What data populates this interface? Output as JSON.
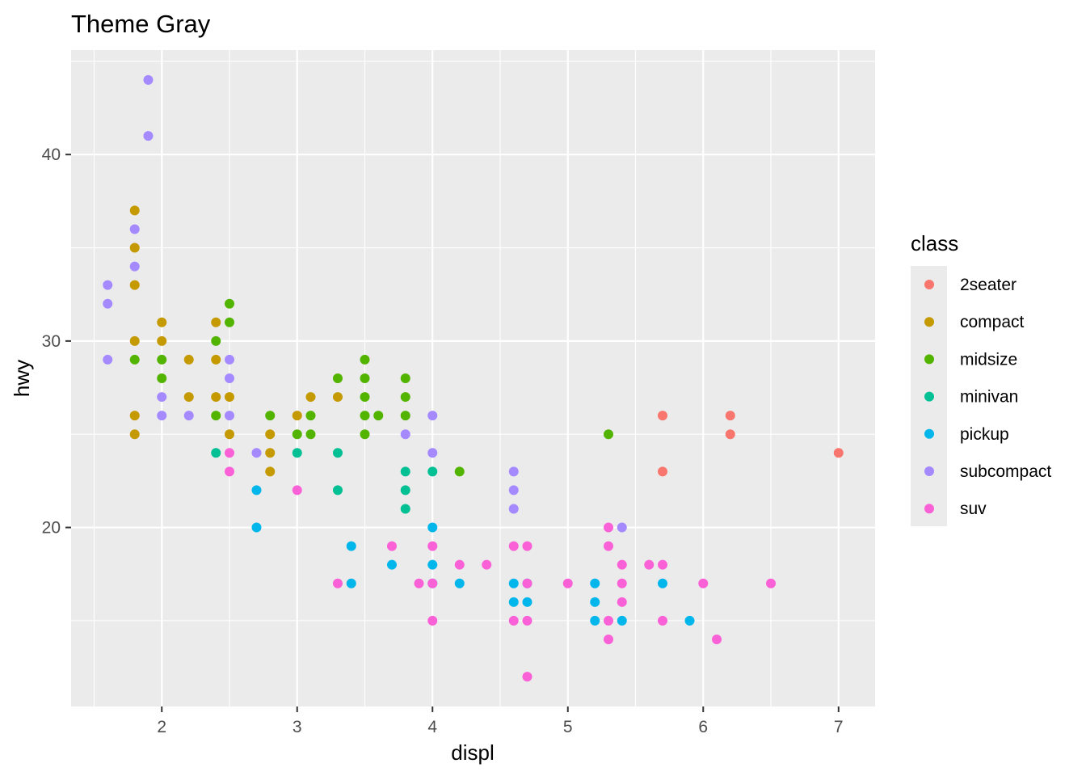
{
  "chart_data": {
    "type": "scatter",
    "title": "Theme Gray",
    "xlabel": "displ",
    "ylabel": "hwy",
    "xlim": [
      1.33,
      7.27
    ],
    "ylim": [
      10.4,
      45.6
    ],
    "x_ticks": [
      2,
      3,
      4,
      5,
      6,
      7
    ],
    "y_ticks": [
      20,
      30,
      40
    ],
    "grid": true,
    "legend": {
      "title": "class",
      "position": "right",
      "entries": [
        {
          "name": "2seater",
          "color": "#F8766D"
        },
        {
          "name": "compact",
          "color": "#C49A00"
        },
        {
          "name": "midsize",
          "color": "#53B400"
        },
        {
          "name": "minivan",
          "color": "#00C094"
        },
        {
          "name": "pickup",
          "color": "#00B6EB"
        },
        {
          "name": "subcompact",
          "color": "#A58AFF"
        },
        {
          "name": "suv",
          "color": "#FB61D7"
        }
      ]
    },
    "series": [
      {
        "name": "2seater",
        "points": [
          [
            5.7,
            26
          ],
          [
            5.7,
            23
          ],
          [
            6.2,
            26
          ],
          [
            6.2,
            25
          ],
          [
            7.0,
            24
          ]
        ]
      },
      {
        "name": "compact",
        "points": [
          [
            1.8,
            37
          ],
          [
            1.8,
            35
          ],
          [
            1.8,
            33
          ],
          [
            1.8,
            30
          ],
          [
            1.8,
            26
          ],
          [
            1.8,
            25
          ],
          [
            2.0,
            31
          ],
          [
            2.0,
            30
          ],
          [
            2.2,
            29
          ],
          [
            2.2,
            27
          ],
          [
            2.4,
            31
          ],
          [
            2.4,
            29
          ],
          [
            2.4,
            27
          ],
          [
            2.5,
            27
          ],
          [
            2.5,
            25
          ],
          [
            2.8,
            25
          ],
          [
            2.8,
            24
          ],
          [
            2.8,
            23
          ],
          [
            3.0,
            26
          ],
          [
            3.1,
            27
          ],
          [
            3.3,
            27
          ]
        ]
      },
      {
        "name": "midsize",
        "points": [
          [
            1.8,
            29
          ],
          [
            2.0,
            29
          ],
          [
            2.0,
            28
          ],
          [
            2.4,
            30
          ],
          [
            2.4,
            26
          ],
          [
            2.5,
            32
          ],
          [
            2.5,
            31
          ],
          [
            2.8,
            26
          ],
          [
            3.0,
            25
          ],
          [
            3.1,
            26
          ],
          [
            3.1,
            25
          ],
          [
            3.3,
            28
          ],
          [
            3.5,
            29
          ],
          [
            3.5,
            28
          ],
          [
            3.5,
            27
          ],
          [
            3.5,
            26
          ],
          [
            3.5,
            25
          ],
          [
            3.6,
            26
          ],
          [
            3.8,
            28
          ],
          [
            3.8,
            27
          ],
          [
            3.8,
            26
          ],
          [
            4.2,
            23
          ],
          [
            5.3,
            25
          ]
        ]
      },
      {
        "name": "minivan",
        "points": [
          [
            2.4,
            24
          ],
          [
            3.0,
            24
          ],
          [
            3.3,
            24
          ],
          [
            3.3,
            22
          ],
          [
            3.8,
            23
          ],
          [
            3.8,
            22
          ],
          [
            3.8,
            21
          ],
          [
            4.0,
            23
          ]
        ]
      },
      {
        "name": "pickup",
        "points": [
          [
            2.7,
            22
          ],
          [
            2.7,
            20
          ],
          [
            3.4,
            19
          ],
          [
            3.4,
            17
          ],
          [
            3.7,
            18
          ],
          [
            4.0,
            20
          ],
          [
            4.0,
            18
          ],
          [
            4.0,
            17
          ],
          [
            4.2,
            17
          ],
          [
            4.6,
            17
          ],
          [
            4.6,
            16
          ],
          [
            4.7,
            16
          ],
          [
            4.7,
            17
          ],
          [
            5.2,
            17
          ],
          [
            5.2,
            16
          ],
          [
            5.2,
            15
          ],
          [
            5.4,
            15
          ],
          [
            5.7,
            17
          ],
          [
            5.9,
            15
          ]
        ]
      },
      {
        "name": "subcompact",
        "points": [
          [
            1.6,
            33
          ],
          [
            1.6,
            32
          ],
          [
            1.6,
            29
          ],
          [
            1.8,
            36
          ],
          [
            1.8,
            34
          ],
          [
            1.9,
            44
          ],
          [
            1.9,
            41
          ],
          [
            2.0,
            27
          ],
          [
            2.0,
            26
          ],
          [
            2.2,
            26
          ],
          [
            2.5,
            29
          ],
          [
            2.5,
            28
          ],
          [
            2.5,
            26
          ],
          [
            2.7,
            24
          ],
          [
            3.8,
            25
          ],
          [
            4.0,
            26
          ],
          [
            4.0,
            24
          ],
          [
            4.6,
            23
          ],
          [
            4.6,
            22
          ],
          [
            4.6,
            21
          ],
          [
            5.4,
            20
          ]
        ]
      },
      {
        "name": "suv",
        "points": [
          [
            2.5,
            24
          ],
          [
            2.5,
            23
          ],
          [
            3.0,
            22
          ],
          [
            3.3,
            17
          ],
          [
            3.7,
            19
          ],
          [
            3.9,
            17
          ],
          [
            4.0,
            19
          ],
          [
            4.0,
            17
          ],
          [
            4.0,
            15
          ],
          [
            4.2,
            18
          ],
          [
            4.4,
            18
          ],
          [
            4.6,
            19
          ],
          [
            4.6,
            15
          ],
          [
            4.7,
            19
          ],
          [
            4.7,
            17
          ],
          [
            4.7,
            15
          ],
          [
            4.7,
            12
          ],
          [
            5.0,
            17
          ],
          [
            5.3,
            20
          ],
          [
            5.3,
            19
          ],
          [
            5.3,
            15
          ],
          [
            5.3,
            14
          ],
          [
            5.4,
            18
          ],
          [
            5.4,
            17
          ],
          [
            5.4,
            16
          ],
          [
            5.6,
            18
          ],
          [
            5.7,
            18
          ],
          [
            5.7,
            15
          ],
          [
            6.0,
            17
          ],
          [
            6.1,
            14
          ],
          [
            6.5,
            17
          ]
        ]
      }
    ]
  }
}
